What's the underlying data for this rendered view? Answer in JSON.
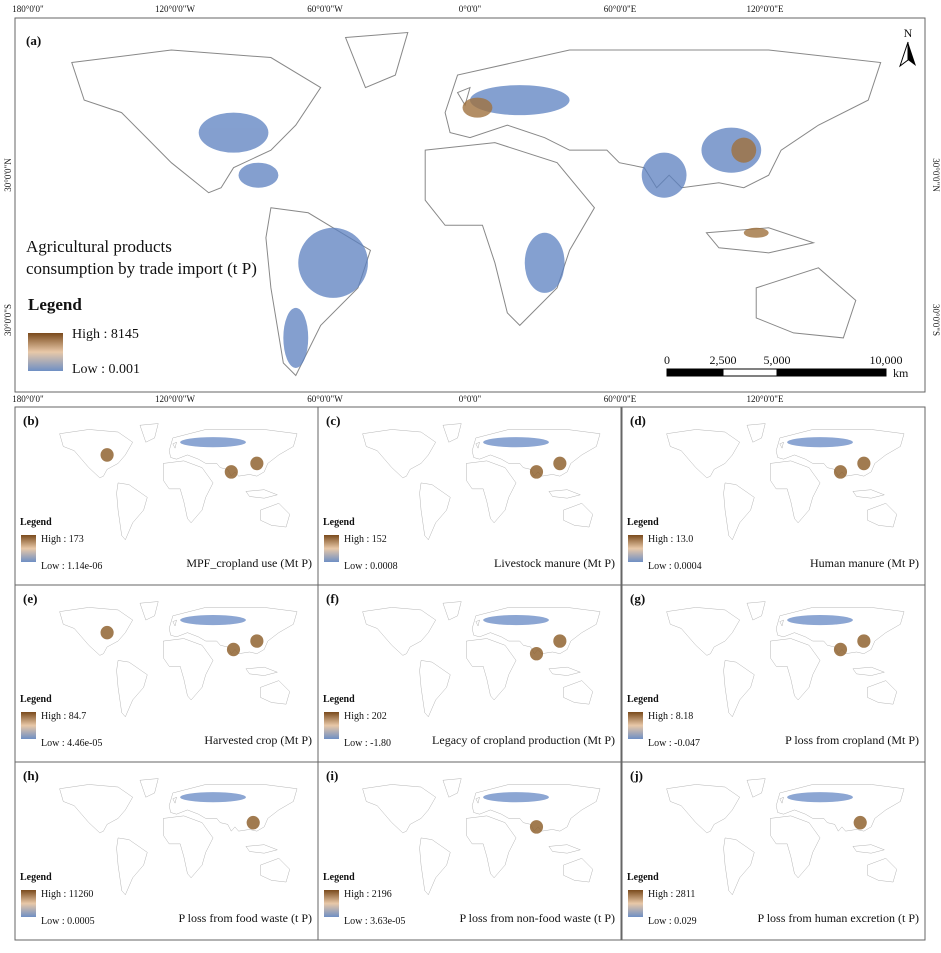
{
  "axis_labels": {
    "top": [
      "180°0'0\"",
      "120°0'0\"W",
      "60°0'0\"W",
      "0°0'0\"",
      "60°0'0\"E",
      "120°0'0\"E"
    ],
    "bottom": [
      "180°0'0\"",
      "120°0'0\"W",
      "60°0'0\"W",
      "0°0'0\"",
      "60°0'0\"E",
      "120°0'0\"E"
    ],
    "left": [
      "30°0'0\"N",
      "30°0'0\"S"
    ],
    "right": [
      "30°0'0\"N",
      "30°0'0\"S"
    ]
  },
  "main_panel": {
    "label": "(a)",
    "title_line1": "Agricultural products",
    "title_line2": "consumption by trade import (t P)",
    "legend_title": "Legend",
    "high": "High : 8145",
    "low": "Low : 0.001",
    "north": "N",
    "scale_labels": [
      "0",
      "2,500",
      "5,000",
      "10,000"
    ],
    "scale_unit": "km"
  },
  "panels": [
    {
      "label": "(b)",
      "legend_title": "Legend",
      "high": "High : 173",
      "low": "Low : 1.14e-06",
      "caption": "MPF_cropland use (Mt P)"
    },
    {
      "label": "(c)",
      "legend_title": "Legend",
      "high": "High : 152",
      "low": "Low : 0.0008",
      "caption": "Livestock manure (Mt P)"
    },
    {
      "label": "(d)",
      "legend_title": "Legend",
      "high": "High : 13.0",
      "low": "Low : 0.0004",
      "caption": "Human manure (Mt P)"
    },
    {
      "label": "(e)",
      "legend_title": "Legend",
      "high": "High : 84.7",
      "low": "Low : 4.46e-05",
      "caption": "Harvested crop (Mt P)"
    },
    {
      "label": "(f)",
      "legend_title": "Legend",
      "high": "High : 202",
      "low": "Low : -1.80",
      "caption": "Legacy of cropland production (Mt P)"
    },
    {
      "label": "(g)",
      "legend_title": "Legend",
      "high": "High : 8.18",
      "low": "Low : -0.047",
      "caption": "P loss from cropland (Mt P)"
    },
    {
      "label": "(h)",
      "legend_title": "Legend",
      "high": "High : 11260",
      "low": "Low : 0.0005",
      "caption": "P loss from food waste (t P)"
    },
    {
      "label": "(i)",
      "legend_title": "Legend",
      "high": "High : 2196",
      "low": "Low : 3.63e-05",
      "caption": "P loss from non-food waste (t P)"
    },
    {
      "label": "(j)",
      "legend_title": "Legend",
      "high": "High : 2811",
      "low": "Low : 0.029",
      "caption": "P loss from human excretion (t P)"
    }
  ]
}
